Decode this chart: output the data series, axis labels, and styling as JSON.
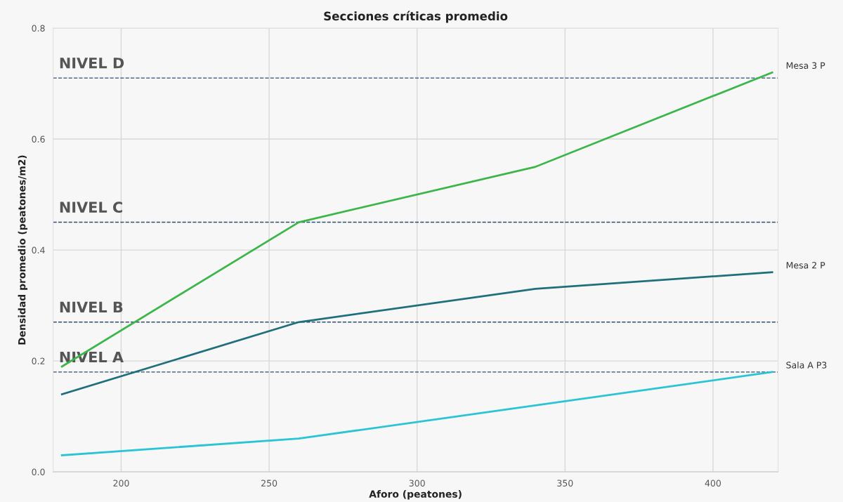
{
  "chart_data": {
    "type": "line",
    "title": "Secciones críticas promedio",
    "xlabel": "Aforo (peatones)",
    "ylabel": "Densidad promedio (peatones/m2)",
    "x": [
      180,
      260,
      340,
      420
    ],
    "series": [
      {
        "name": "Mesa 3 P",
        "color": "#3cb54a",
        "values": [
          0.19,
          0.45,
          0.55,
          0.72
        ]
      },
      {
        "name": "Mesa 2 P",
        "color": "#1f6f7c",
        "values": [
          0.14,
          0.27,
          0.33,
          0.36
        ]
      },
      {
        "name": "Sala A P3",
        "color": "#2bc3d6",
        "values": [
          0.03,
          0.06,
          0.12,
          0.18
        ]
      }
    ],
    "ref_lines": [
      {
        "axis": "y",
        "value": 0.71,
        "label": "NIVEL D",
        "color": "#2f4f6f",
        "line_style": "dashed"
      },
      {
        "axis": "y",
        "value": 0.45,
        "label": "NIVEL C",
        "color": "#2f4f6f",
        "line_style": "dashed"
      },
      {
        "axis": "y",
        "value": 0.27,
        "label": "NIVEL B",
        "color": "#2f4f6f",
        "line_style": "dashed"
      },
      {
        "axis": "y",
        "value": 0.18,
        "label": "NIVEL A",
        "color": "#2f4f6f",
        "line_style": "dashed"
      }
    ],
    "xlim": [
      177,
      422
    ],
    "xticks": [
      200,
      250,
      300,
      350,
      400
    ],
    "ylim": [
      0,
      0.8
    ],
    "yticks": [
      {
        "value": 0,
        "label": "0.0"
      },
      {
        "value": 0.2,
        "label": "0.2"
      },
      {
        "value": 0.4,
        "label": "0.4"
      },
      {
        "value": 0.6,
        "label": "0.6"
      },
      {
        "value": 0.8,
        "label": "0.8"
      }
    ],
    "grid": true,
    "legend": false,
    "marker": "none",
    "line_style": "solid"
  }
}
